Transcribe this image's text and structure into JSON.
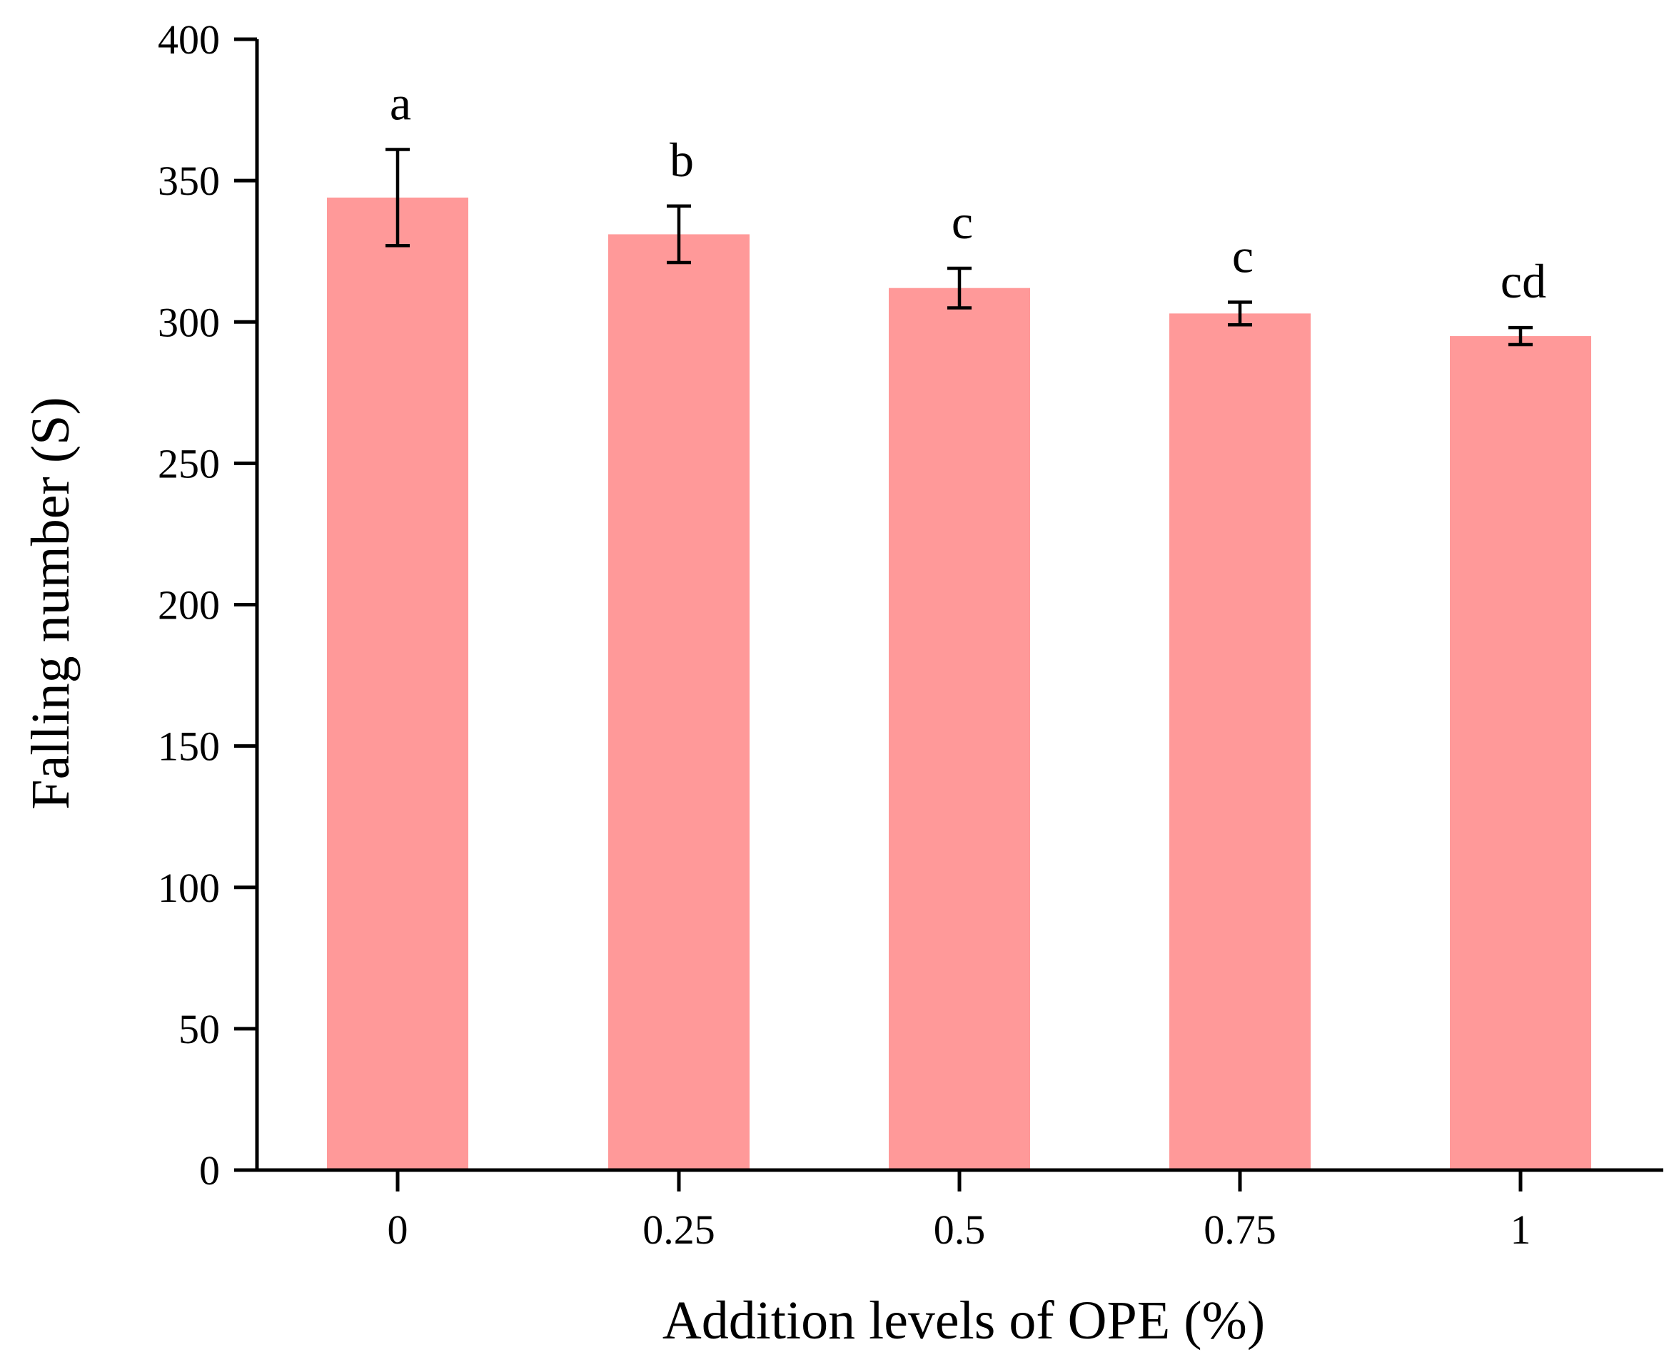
{
  "chart_data": {
    "type": "bar",
    "title": "",
    "xlabel": "Addition levels of OPE (%)",
    "ylabel": "Falling number (S)",
    "categories": [
      "0",
      "0.25",
      "0.5",
      "0.75",
      "1"
    ],
    "values": [
      344,
      331,
      312,
      303,
      295
    ],
    "errors": [
      17,
      10,
      7,
      4,
      3
    ],
    "significance_labels": [
      "a",
      "b",
      "c",
      "c",
      "cd"
    ],
    "ylim": [
      0,
      400
    ],
    "yticks": [
      0,
      50,
      100,
      150,
      200,
      250,
      300,
      350,
      400
    ],
    "grid": false,
    "bar_color": "#ff9999",
    "axis_color": "#000000"
  }
}
